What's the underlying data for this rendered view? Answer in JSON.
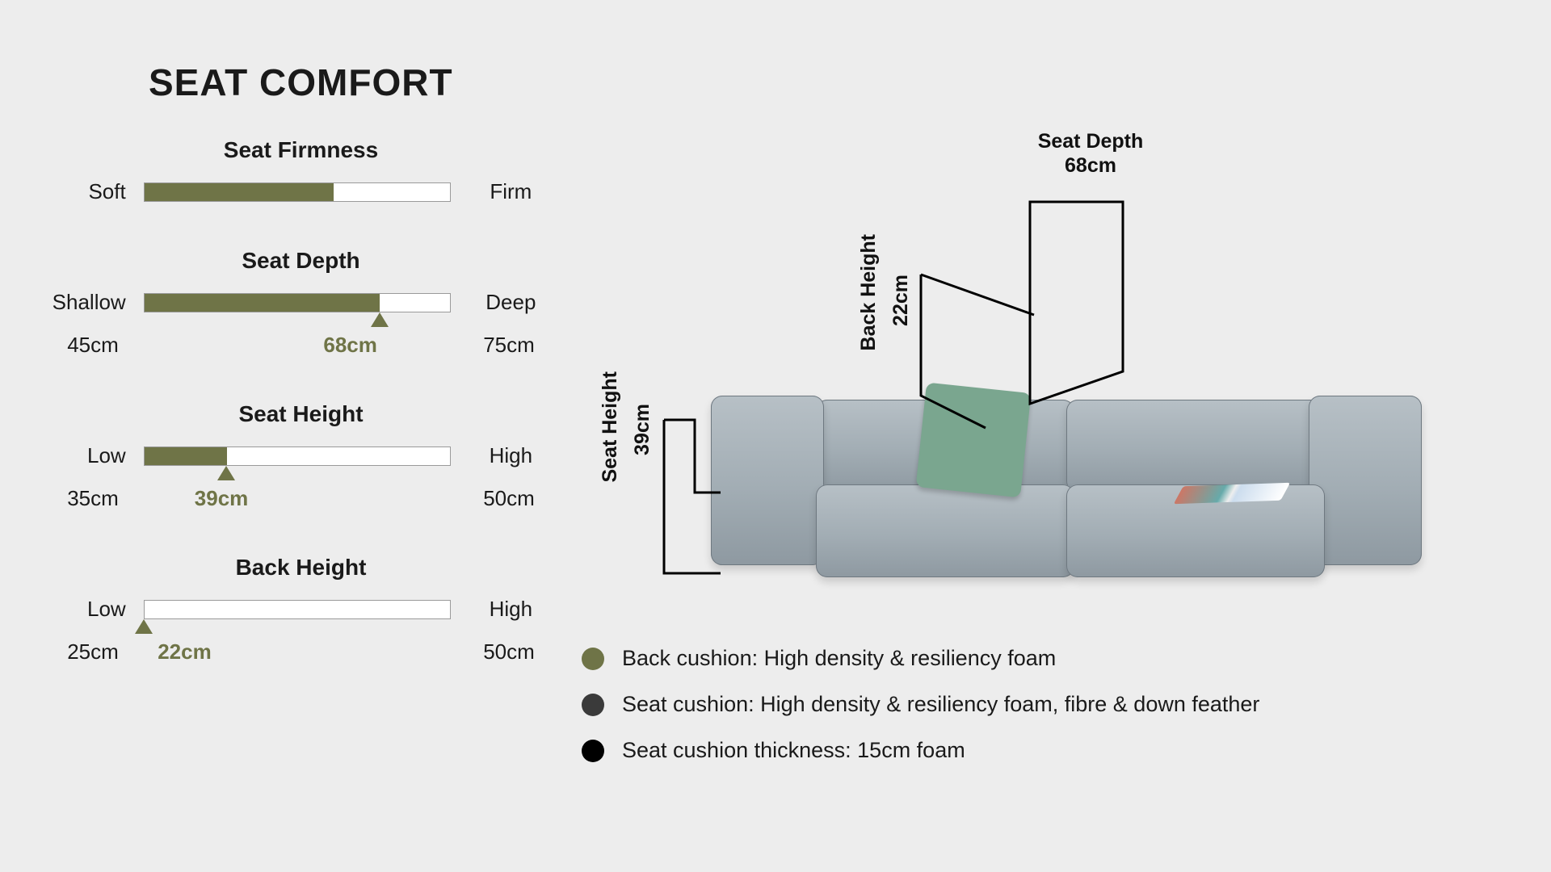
{
  "title": "SEAT COMFORT",
  "colors": {
    "accent": "#6f7447",
    "background": "#ededed",
    "bar_border": "#9a9a9a",
    "text": "#1a1a1a",
    "sofa_body": "#a6b0b7",
    "pillow": "#7aa68f",
    "legend1": "#6f7447",
    "legend2": "#3a3a3a",
    "legend3": "#000000"
  },
  "gauges": {
    "firmness": {
      "title": "Seat Firmness",
      "left_label": "Soft",
      "right_label": "Firm",
      "fill_pct": 62,
      "show_marker": false,
      "show_ticks": false
    },
    "depth": {
      "title": "Seat Depth",
      "left_label": "Shallow",
      "right_label": "Deep",
      "min": 45,
      "max": 75,
      "value": 68,
      "unit": "cm",
      "min_label": "45cm",
      "max_label": "75cm",
      "value_label": "68cm",
      "fill_pct": 77,
      "value_pos_pct": 68,
      "show_marker": true,
      "show_ticks": true
    },
    "height": {
      "title": "Seat Height",
      "left_label": "Low",
      "right_label": "High",
      "min": 35,
      "max": 50,
      "value": 39,
      "unit": "cm",
      "min_label": "35cm",
      "max_label": "50cm",
      "value_label": "39cm",
      "fill_pct": 27,
      "value_pos_pct": 26,
      "show_marker": true,
      "show_ticks": true
    },
    "back": {
      "title": "Back Height",
      "left_label": "Low",
      "right_label": "High",
      "min": 25,
      "max": 50,
      "value": 22,
      "unit": "cm",
      "min_label": "25cm",
      "max_label": "50cm",
      "value_label": "22cm",
      "fill_pct": 0,
      "value_pos_pct": 14,
      "show_marker": true,
      "marker_at_start": true,
      "show_ticks": true
    }
  },
  "diagram": {
    "seat_height": {
      "label": "Seat Height",
      "value": "39cm"
    },
    "back_height": {
      "label": "Back Height",
      "value": "22cm"
    },
    "seat_depth": {
      "label": "Seat Depth",
      "value": "68cm"
    }
  },
  "legend": [
    {
      "color": "#6f7447",
      "text": "Back cushion: High density & resiliency foam"
    },
    {
      "color": "#3a3a3a",
      "text": "Seat cushion: High density & resiliency foam, fibre & down feather"
    },
    {
      "color": "#000000",
      "text": "Seat cushion thickness: 15cm foam"
    }
  ]
}
